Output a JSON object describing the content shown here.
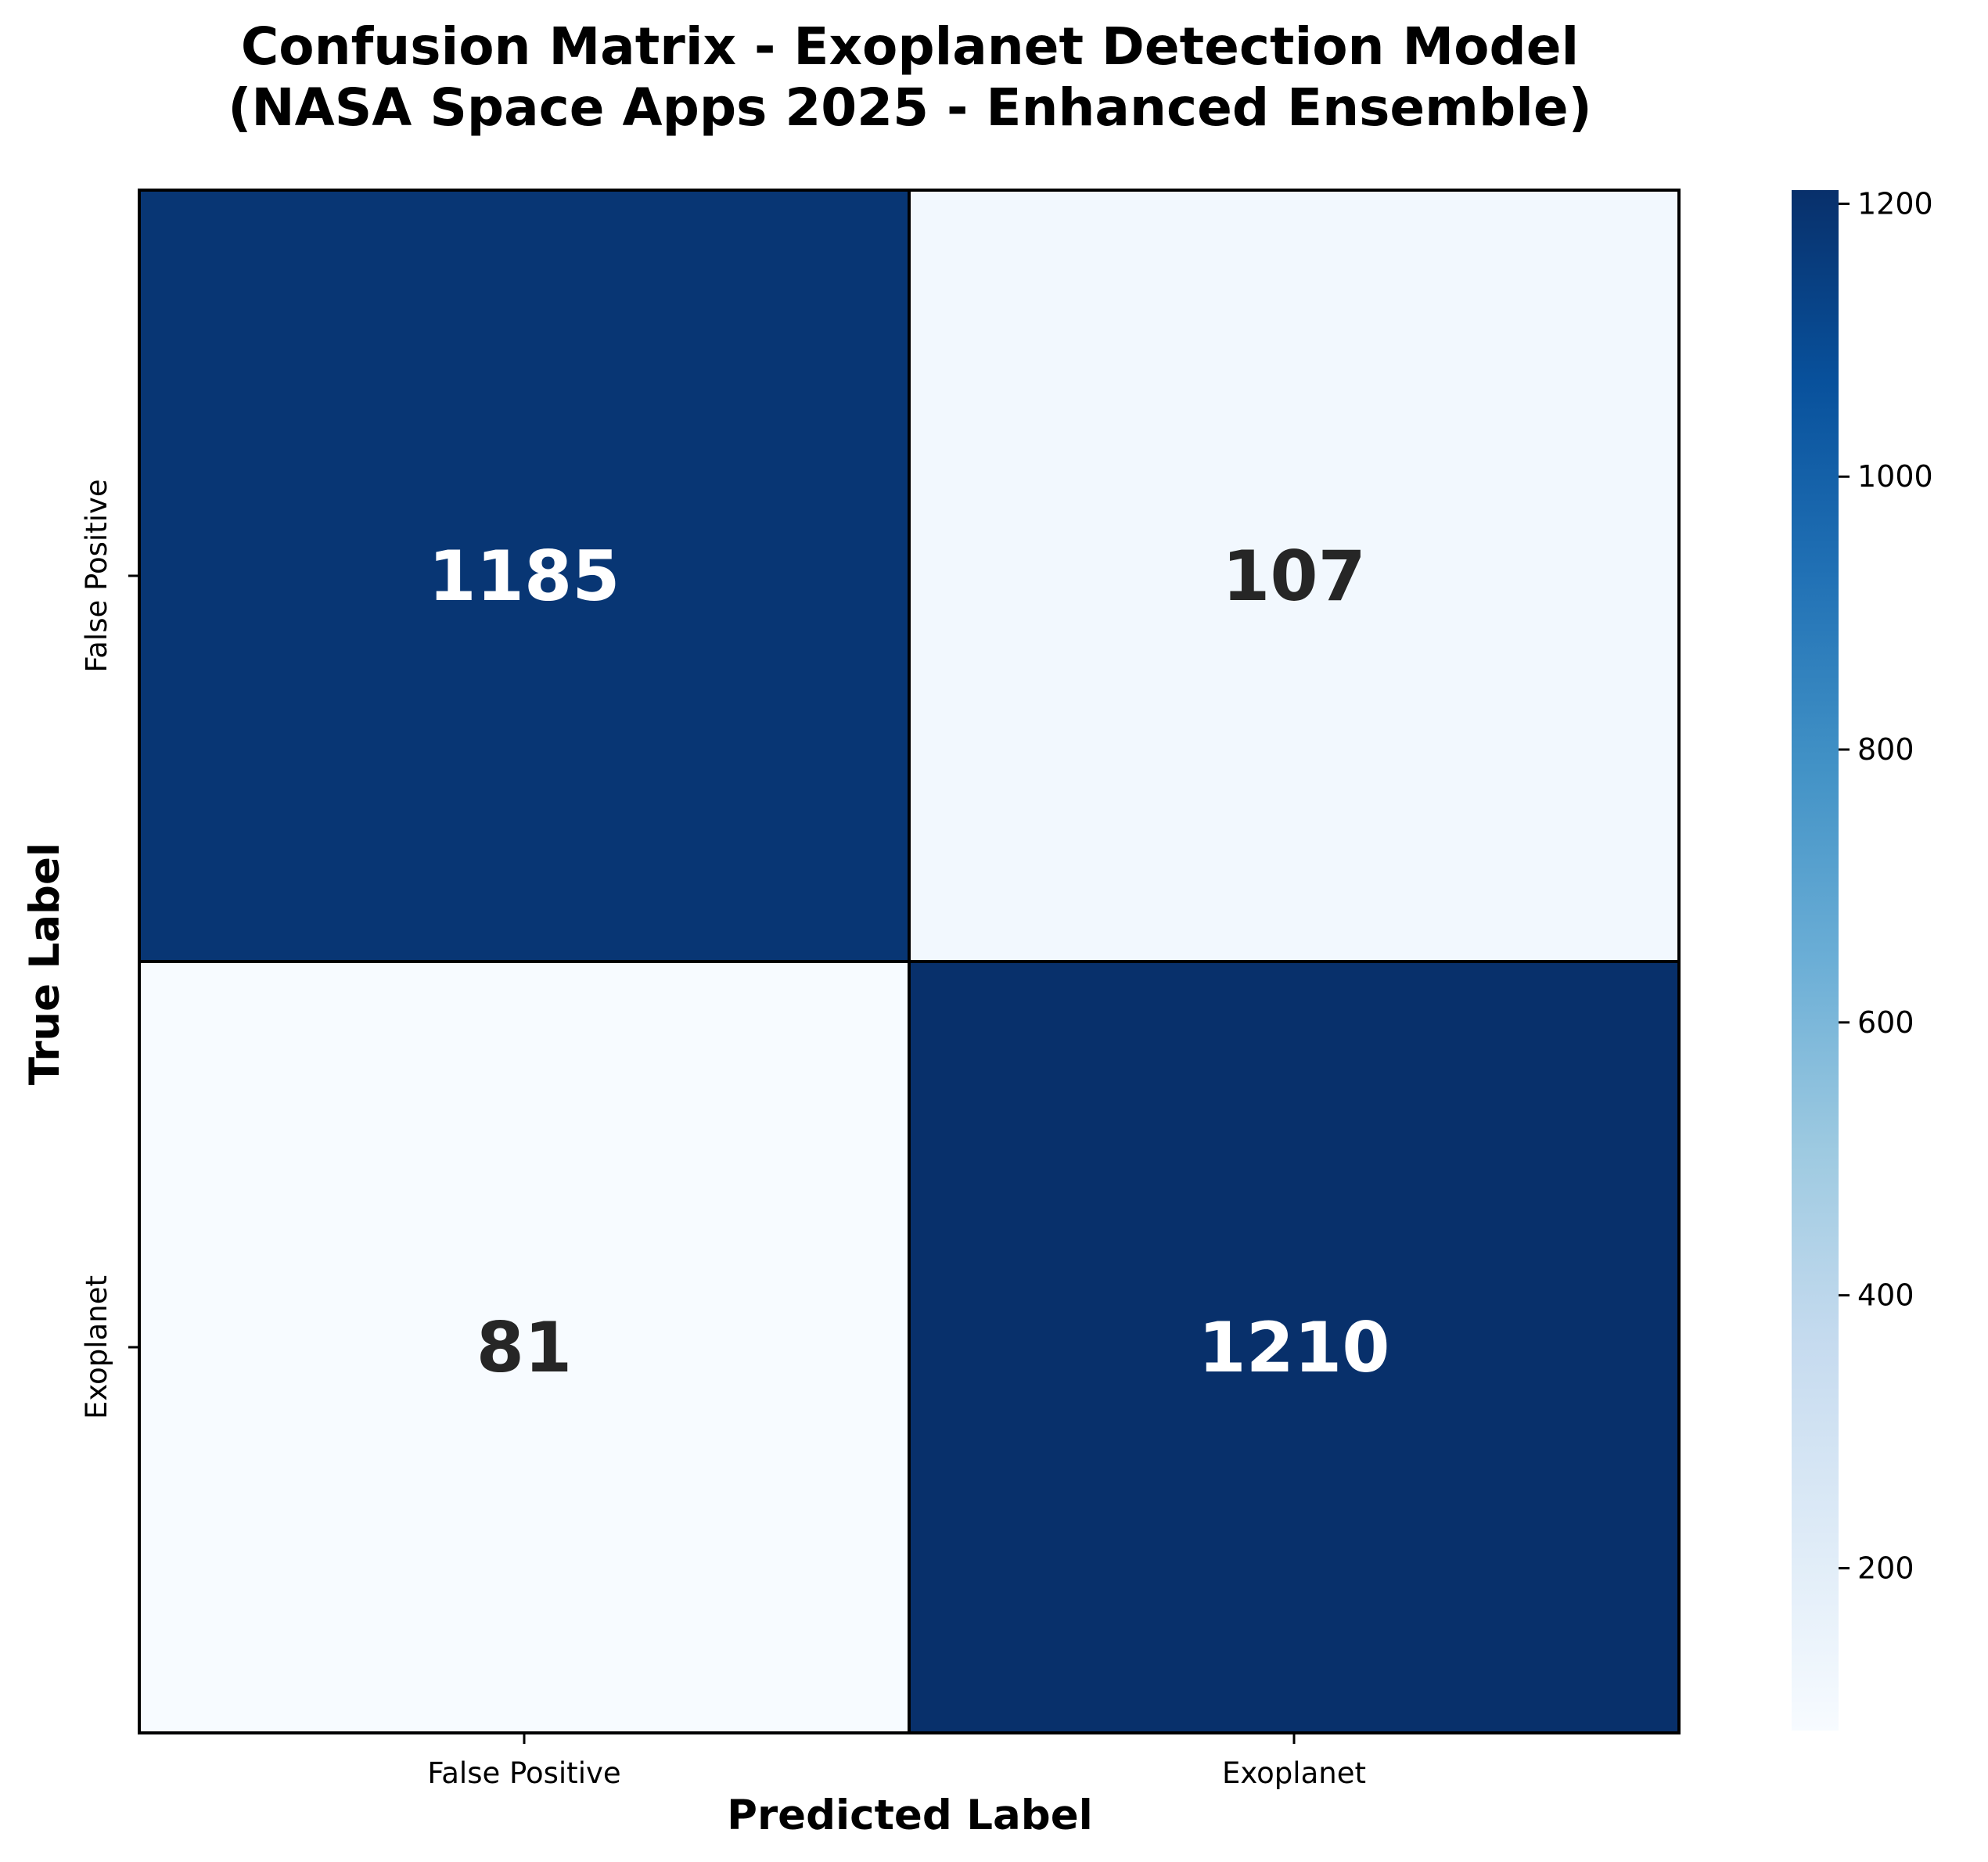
{
  "chart_data": {
    "type": "heatmap",
    "title_line1": "Confusion Matrix - Exoplanet Detection Model",
    "title_line2": "(NASA Space Apps 2025 - Enhanced Ensemble)",
    "xlabel": "Predicted Label",
    "ylabel": "True Label",
    "x_categories": [
      "False Positive",
      "Exoplanet"
    ],
    "y_categories": [
      "False Positive",
      "Exoplanet"
    ],
    "matrix": [
      [
        1185,
        107
      ],
      [
        81,
        1210
      ]
    ],
    "colormap": "Blues",
    "colorbar": {
      "range": [
        81,
        1210
      ],
      "ticks": [
        200,
        400,
        600,
        800,
        1000,
        1200
      ],
      "tick_labels": [
        "200",
        "400",
        "600",
        "800",
        "1000",
        "1200"
      ]
    },
    "colors": {
      "cmap_stops": [
        "#f7fbff",
        "#deebf7",
        "#c6dbef",
        "#9ecae1",
        "#6baed6",
        "#4292c6",
        "#2171b5",
        "#08519c",
        "#08306b"
      ],
      "light_text": "#ffffff",
      "dark_text": "#262626",
      "grid_line": "#000000"
    }
  }
}
